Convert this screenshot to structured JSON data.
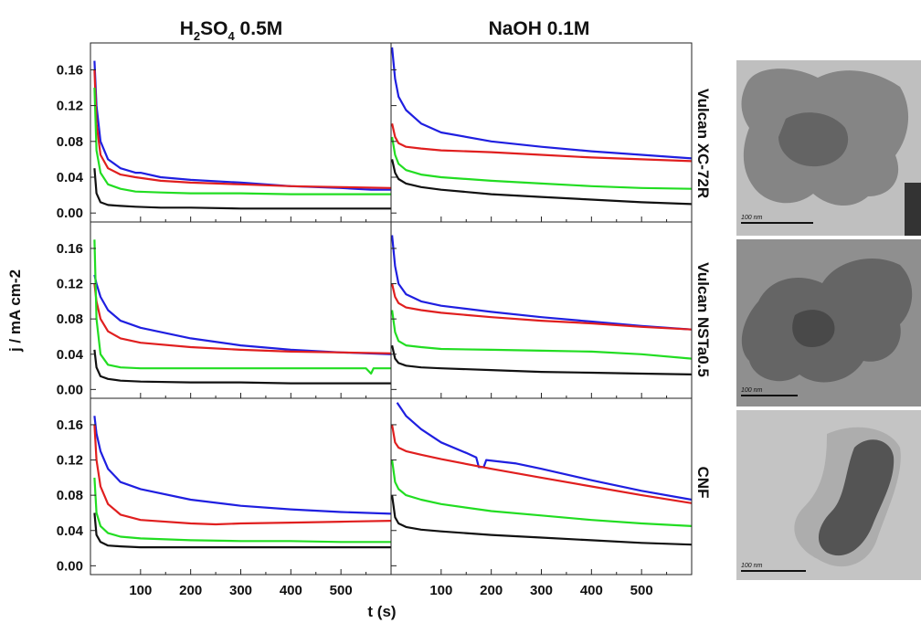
{
  "figure": {
    "col_titles": [
      {
        "main": "H",
        "sub1": "2",
        "mid": "SO",
        "sub2": "4",
        "rest": " 0.5M"
      },
      {
        "main": "NaOH 0.1M",
        "sub1": "",
        "mid": "",
        "sub2": "",
        "rest": ""
      }
    ],
    "row_labels": [
      "Vulcan XC-72R",
      "Vulcan NSTa0.5",
      "CNF"
    ],
    "ylabel": "j / mA cm-2",
    "xlabel": "t (s)",
    "tem_scale_label": "100 nm"
  },
  "chart_data": [
    {
      "type": "line",
      "panel": "H2SO4 0.5M / Vulcan XC-72R",
      "xlim": [
        0,
        600
      ],
      "ylim": [
        -0.01,
        0.19
      ],
      "x_ticks": [
        100,
        200,
        300,
        400,
        500
      ],
      "y_ticks": [
        0.0,
        0.04,
        0.08,
        0.12,
        0.16
      ],
      "series": [
        {
          "color": "#1f1fe0",
          "x": [
            8,
            12,
            20,
            35,
            60,
            90,
            100,
            140,
            200,
            300,
            400,
            500,
            560,
            600
          ],
          "y": [
            0.17,
            0.12,
            0.08,
            0.06,
            0.05,
            0.045,
            0.045,
            0.04,
            0.037,
            0.034,
            0.03,
            0.028,
            0.026,
            0.026
          ]
        },
        {
          "color": "#e01f1f",
          "x": [
            8,
            12,
            20,
            35,
            60,
            90,
            140,
            200,
            300,
            400,
            500,
            600
          ],
          "y": [
            0.16,
            0.1,
            0.065,
            0.05,
            0.043,
            0.04,
            0.036,
            0.034,
            0.032,
            0.03,
            0.029,
            0.028
          ]
        },
        {
          "color": "#22dd22",
          "x": [
            8,
            12,
            20,
            35,
            60,
            90,
            140,
            200,
            300,
            400,
            500,
            600
          ],
          "y": [
            0.14,
            0.07,
            0.045,
            0.032,
            0.027,
            0.024,
            0.023,
            0.022,
            0.022,
            0.021,
            0.021,
            0.021
          ]
        },
        {
          "color": "#111111",
          "x": [
            8,
            12,
            20,
            35,
            60,
            90,
            140,
            200,
            300,
            400,
            500,
            600
          ],
          "y": [
            0.05,
            0.022,
            0.012,
            0.009,
            0.008,
            0.007,
            0.006,
            0.006,
            0.005,
            0.005,
            0.005,
            0.005
          ]
        }
      ]
    },
    {
      "type": "line",
      "panel": "NaOH 0.1M / Vulcan XC-72R",
      "xlim": [
        0,
        600
      ],
      "ylim": [
        -0.01,
        0.19
      ],
      "x_ticks": [
        100,
        200,
        300,
        400,
        500
      ],
      "y_ticks": [
        0.0,
        0.04,
        0.08,
        0.12,
        0.16
      ],
      "series": [
        {
          "color": "#1f1fe0",
          "x": [
            2,
            8,
            15,
            30,
            60,
            100,
            200,
            300,
            400,
            500,
            600
          ],
          "y": [
            0.185,
            0.15,
            0.13,
            0.115,
            0.1,
            0.09,
            0.08,
            0.074,
            0.069,
            0.065,
            0.061
          ]
        },
        {
          "color": "#e01f1f",
          "x": [
            2,
            8,
            15,
            30,
            60,
            100,
            200,
            300,
            400,
            500,
            600
          ],
          "y": [
            0.1,
            0.085,
            0.078,
            0.074,
            0.072,
            0.07,
            0.068,
            0.065,
            0.062,
            0.06,
            0.058
          ]
        },
        {
          "color": "#22dd22",
          "x": [
            2,
            8,
            15,
            30,
            60,
            100,
            200,
            300,
            400,
            500,
            600
          ],
          "y": [
            0.085,
            0.065,
            0.055,
            0.048,
            0.043,
            0.04,
            0.036,
            0.033,
            0.03,
            0.028,
            0.027
          ]
        },
        {
          "color": "#111111",
          "x": [
            2,
            8,
            15,
            30,
            60,
            100,
            200,
            300,
            400,
            500,
            600
          ],
          "y": [
            0.06,
            0.045,
            0.038,
            0.033,
            0.029,
            0.026,
            0.021,
            0.018,
            0.015,
            0.012,
            0.01
          ]
        }
      ]
    },
    {
      "type": "line",
      "panel": "H2SO4 0.5M / Vulcan NSTa0.5",
      "xlim": [
        0,
        600
      ],
      "ylim": [
        -0.01,
        0.19
      ],
      "x_ticks": [
        100,
        200,
        300,
        400,
        500
      ],
      "y_ticks": [
        0.0,
        0.04,
        0.08,
        0.12,
        0.16
      ],
      "series": [
        {
          "color": "#1f1fe0",
          "x": [
            8,
            12,
            20,
            35,
            60,
            100,
            200,
            300,
            400,
            500,
            600
          ],
          "y": [
            0.13,
            0.12,
            0.105,
            0.09,
            0.078,
            0.07,
            0.058,
            0.05,
            0.045,
            0.042,
            0.04
          ]
        },
        {
          "color": "#e01f1f",
          "x": [
            8,
            12,
            20,
            35,
            60,
            100,
            200,
            300,
            400,
            500,
            600
          ],
          "y": [
            0.12,
            0.1,
            0.08,
            0.066,
            0.058,
            0.053,
            0.048,
            0.045,
            0.043,
            0.042,
            0.041
          ]
        },
        {
          "color": "#22dd22",
          "x": [
            8,
            12,
            20,
            35,
            60,
            100,
            200,
            300,
            400,
            500,
            550,
            560,
            565,
            570,
            580,
            600
          ],
          "y": [
            0.17,
            0.08,
            0.04,
            0.028,
            0.025,
            0.024,
            0.024,
            0.024,
            0.024,
            0.024,
            0.024,
            0.018,
            0.024,
            0.024,
            0.024,
            0.024
          ]
        },
        {
          "color": "#111111",
          "x": [
            8,
            12,
            20,
            35,
            60,
            100,
            200,
            300,
            400,
            500,
            600
          ],
          "y": [
            0.045,
            0.025,
            0.015,
            0.012,
            0.01,
            0.009,
            0.008,
            0.008,
            0.007,
            0.007,
            0.007
          ]
        }
      ]
    },
    {
      "type": "line",
      "panel": "NaOH 0.1M / Vulcan NSTa0.5",
      "xlim": [
        0,
        600
      ],
      "ylim": [
        -0.01,
        0.19
      ],
      "x_ticks": [
        100,
        200,
        300,
        400,
        500
      ],
      "y_ticks": [
        0.0,
        0.04,
        0.08,
        0.12,
        0.16
      ],
      "series": [
        {
          "color": "#1f1fe0",
          "x": [
            2,
            8,
            15,
            30,
            60,
            100,
            200,
            300,
            400,
            500,
            600
          ],
          "y": [
            0.175,
            0.14,
            0.12,
            0.108,
            0.1,
            0.095,
            0.088,
            0.082,
            0.077,
            0.072,
            0.068
          ]
        },
        {
          "color": "#e01f1f",
          "x": [
            2,
            8,
            15,
            30,
            60,
            100,
            200,
            300,
            400,
            500,
            600
          ],
          "y": [
            0.12,
            0.105,
            0.098,
            0.093,
            0.09,
            0.087,
            0.082,
            0.078,
            0.075,
            0.071,
            0.068
          ]
        },
        {
          "color": "#22dd22",
          "x": [
            2,
            8,
            15,
            30,
            60,
            100,
            200,
            300,
            400,
            500,
            600
          ],
          "y": [
            0.09,
            0.065,
            0.055,
            0.05,
            0.048,
            0.046,
            0.045,
            0.044,
            0.043,
            0.04,
            0.035
          ]
        },
        {
          "color": "#111111",
          "x": [
            2,
            8,
            15,
            30,
            60,
            100,
            200,
            300,
            400,
            500,
            600
          ],
          "y": [
            0.05,
            0.035,
            0.03,
            0.027,
            0.025,
            0.024,
            0.022,
            0.02,
            0.019,
            0.018,
            0.017
          ]
        }
      ]
    },
    {
      "type": "line",
      "panel": "H2SO4 0.5M / CNF",
      "xlim": [
        0,
        600
      ],
      "ylim": [
        -0.01,
        0.19
      ],
      "x_ticks": [
        100,
        200,
        300,
        400,
        500
      ],
      "y_ticks": [
        0.0,
        0.04,
        0.08,
        0.12,
        0.16
      ],
      "series": [
        {
          "color": "#1f1fe0",
          "x": [
            8,
            12,
            20,
            35,
            60,
            100,
            200,
            300,
            400,
            500,
            600
          ],
          "y": [
            0.17,
            0.15,
            0.13,
            0.11,
            0.095,
            0.087,
            0.075,
            0.068,
            0.064,
            0.061,
            0.059
          ]
        },
        {
          "color": "#e01f1f",
          "x": [
            8,
            12,
            20,
            35,
            60,
            100,
            200,
            250,
            300,
            400,
            500,
            600
          ],
          "y": [
            0.16,
            0.12,
            0.09,
            0.07,
            0.058,
            0.052,
            0.048,
            0.047,
            0.048,
            0.049,
            0.05,
            0.051
          ]
        },
        {
          "color": "#22dd22",
          "x": [
            8,
            12,
            20,
            35,
            60,
            100,
            200,
            300,
            400,
            500,
            600
          ],
          "y": [
            0.1,
            0.06,
            0.045,
            0.037,
            0.033,
            0.031,
            0.029,
            0.028,
            0.028,
            0.027,
            0.027
          ]
        },
        {
          "color": "#111111",
          "x": [
            8,
            12,
            20,
            35,
            60,
            100,
            200,
            300,
            400,
            500,
            600
          ],
          "y": [
            0.06,
            0.035,
            0.027,
            0.023,
            0.022,
            0.021,
            0.021,
            0.021,
            0.021,
            0.021,
            0.021
          ]
        }
      ]
    },
    {
      "type": "line",
      "panel": "NaOH 0.1M / CNF",
      "xlim": [
        0,
        600
      ],
      "ylim": [
        -0.01,
        0.19
      ],
      "x_ticks": [
        100,
        200,
        300,
        400,
        500
      ],
      "y_ticks": [
        0.0,
        0.04,
        0.08,
        0.12,
        0.16
      ],
      "series": [
        {
          "color": "#1f1fe0",
          "x": [
            12,
            30,
            60,
            100,
            150,
            170,
            175,
            185,
            190,
            250,
            300,
            400,
            500,
            600
          ],
          "y": [
            0.185,
            0.17,
            0.155,
            0.14,
            0.128,
            0.123,
            0.112,
            0.112,
            0.12,
            0.116,
            0.11,
            0.097,
            0.085,
            0.075
          ]
        },
        {
          "color": "#e01f1f",
          "x": [
            2,
            8,
            15,
            30,
            60,
            100,
            200,
            300,
            400,
            500,
            600
          ],
          "y": [
            0.16,
            0.14,
            0.134,
            0.13,
            0.126,
            0.121,
            0.11,
            0.1,
            0.09,
            0.08,
            0.071
          ]
        },
        {
          "color": "#22dd22",
          "x": [
            2,
            8,
            15,
            30,
            60,
            100,
            200,
            300,
            400,
            500,
            600
          ],
          "y": [
            0.12,
            0.095,
            0.087,
            0.08,
            0.075,
            0.07,
            0.062,
            0.057,
            0.052,
            0.048,
            0.045
          ]
        },
        {
          "color": "#111111",
          "x": [
            2,
            8,
            15,
            30,
            60,
            100,
            200,
            300,
            400,
            500,
            600
          ],
          "y": [
            0.08,
            0.055,
            0.048,
            0.044,
            0.041,
            0.039,
            0.035,
            0.032,
            0.029,
            0.026,
            0.024
          ]
        }
      ]
    }
  ]
}
